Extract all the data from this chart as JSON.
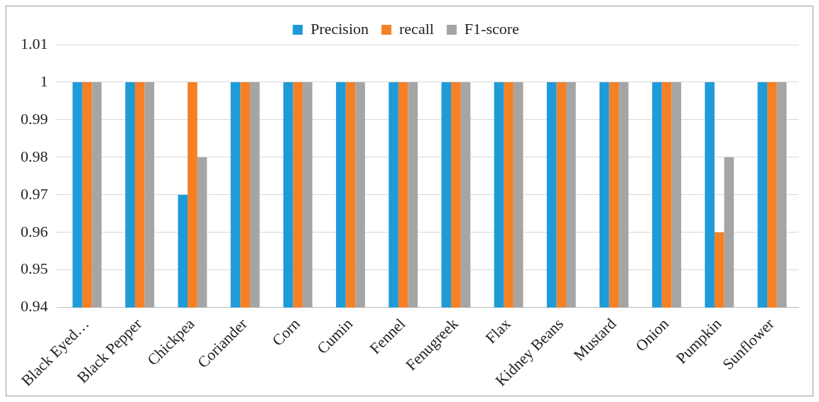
{
  "chart_data": {
    "type": "bar",
    "categories": [
      "Black Eyed…",
      "Black Pepper",
      "Chickpea",
      "Coriander",
      "Corn",
      "Cumin",
      "Fennel",
      "Fenugreek",
      "Flax",
      "Kidney Beans",
      "Mustard",
      "Onion",
      "Pumpkin",
      "Sunflower"
    ],
    "series": [
      {
        "name": "Precision",
        "color": "#1f9bd7",
        "values": [
          1,
          1,
          0.97,
          1,
          1,
          1,
          1,
          1,
          1,
          1,
          1,
          1,
          1,
          1
        ]
      },
      {
        "name": "recall",
        "color": "#f58025",
        "values": [
          1,
          1,
          1,
          1,
          1,
          1,
          1,
          1,
          1,
          1,
          1,
          1,
          0.96,
          1
        ]
      },
      {
        "name": "F1-score",
        "color": "#a5a5a5",
        "values": [
          1,
          1,
          0.98,
          1,
          1,
          1,
          1,
          1,
          1,
          1,
          1,
          1,
          0.98,
          1
        ]
      }
    ],
    "ylim": [
      0.94,
      1.01
    ],
    "yticks": [
      0.94,
      0.95,
      0.96,
      0.97,
      0.98,
      0.99,
      1,
      1.01
    ],
    "grid": "y",
    "legend": "top"
  }
}
